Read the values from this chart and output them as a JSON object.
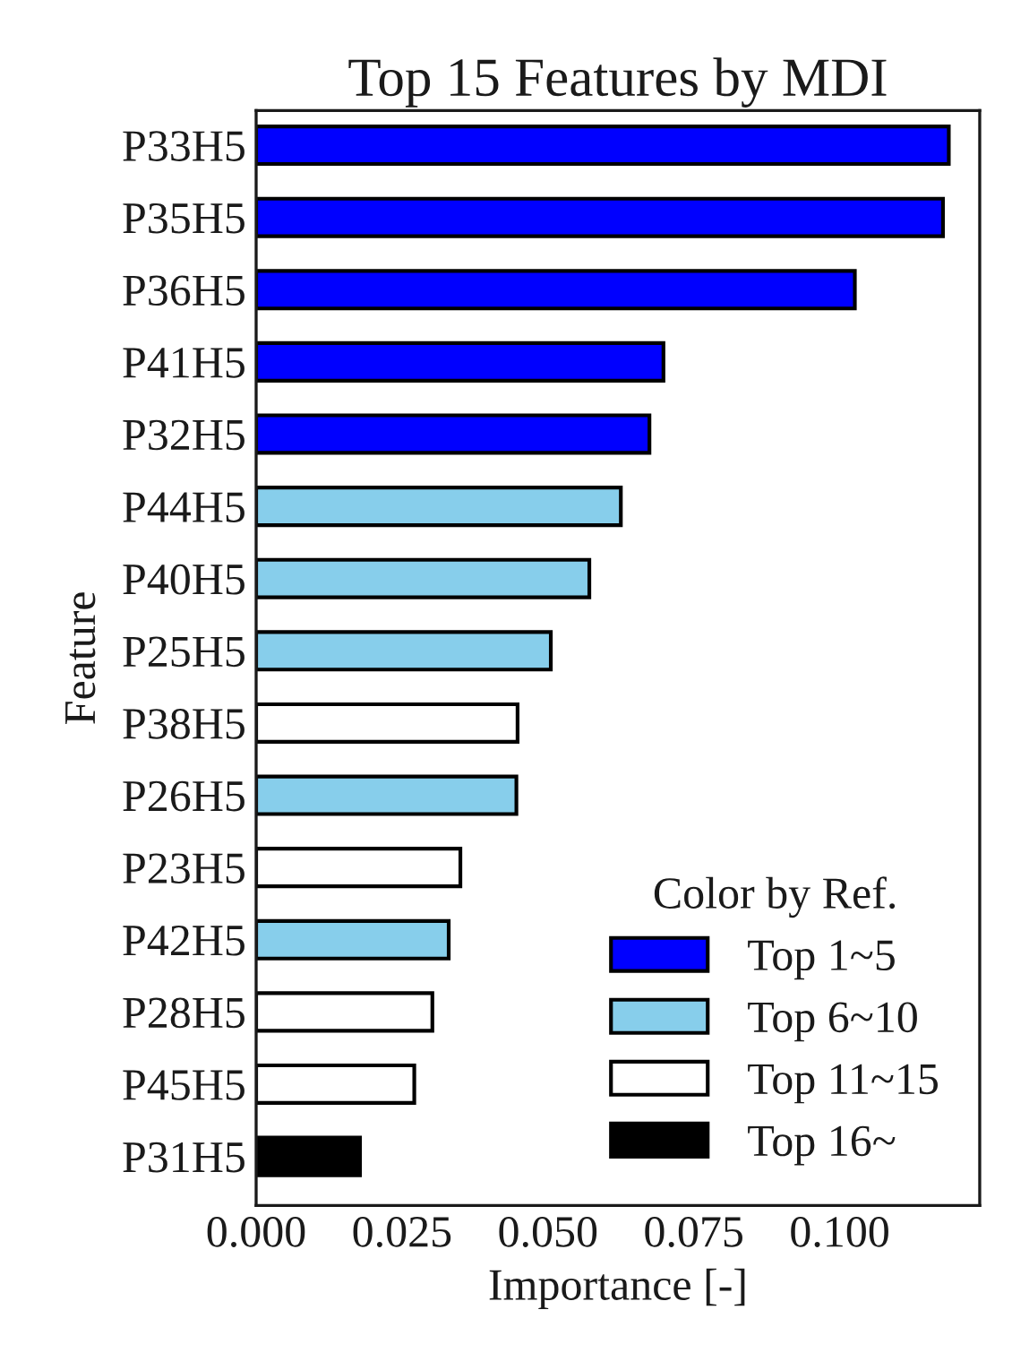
{
  "chart_data": {
    "type": "bar",
    "orientation": "horizontal",
    "title": "Top 15 Features by MDI",
    "xlabel": "Importance [-]",
    "ylabel": "Feature",
    "legend_title": "Color by Ref.",
    "categories": [
      "P33H5",
      "P35H5",
      "P36H5",
      "P41H5",
      "P32H5",
      "P44H5",
      "P40H5",
      "P25H5",
      "P38H5",
      "P26H5",
      "P23H5",
      "P42H5",
      "P28H5",
      "P45H5",
      "P31H5"
    ],
    "series": [
      {
        "name": "Top 1~5",
        "color": "#0000ff",
        "values": [
          0.1187,
          0.1177,
          0.1026,
          0.0698,
          0.0674,
          null,
          null,
          null,
          null,
          null,
          null,
          null,
          null,
          null,
          null
        ]
      },
      {
        "name": "Top 6~10",
        "color": "#87ceeb",
        "values": [
          null,
          null,
          null,
          null,
          null,
          0.0625,
          0.0571,
          0.0505,
          null,
          0.0446,
          null,
          0.033,
          null,
          null,
          null
        ]
      },
      {
        "name": "Top 11~15",
        "color": "#ffffff",
        "values": [
          null,
          null,
          null,
          null,
          null,
          null,
          null,
          null,
          0.0448,
          null,
          0.035,
          null,
          0.0302,
          0.0271,
          null
        ]
      },
      {
        "name": "Top 16~",
        "color": "#000000",
        "values": [
          null,
          null,
          null,
          null,
          null,
          null,
          null,
          null,
          null,
          null,
          null,
          null,
          null,
          null,
          0.0178
        ]
      }
    ],
    "xlim": [
      0,
      0.124
    ],
    "xticks": [
      {
        "value": 0,
        "label": "0.000"
      },
      {
        "value": 0.025,
        "label": "0.025"
      },
      {
        "value": 0.05,
        "label": "0.050"
      },
      {
        "value": 0.075,
        "label": "0.075"
      },
      {
        "value": 0.1,
        "label": "0.100"
      }
    ],
    "legend": "bottom right",
    "grid": false
  }
}
